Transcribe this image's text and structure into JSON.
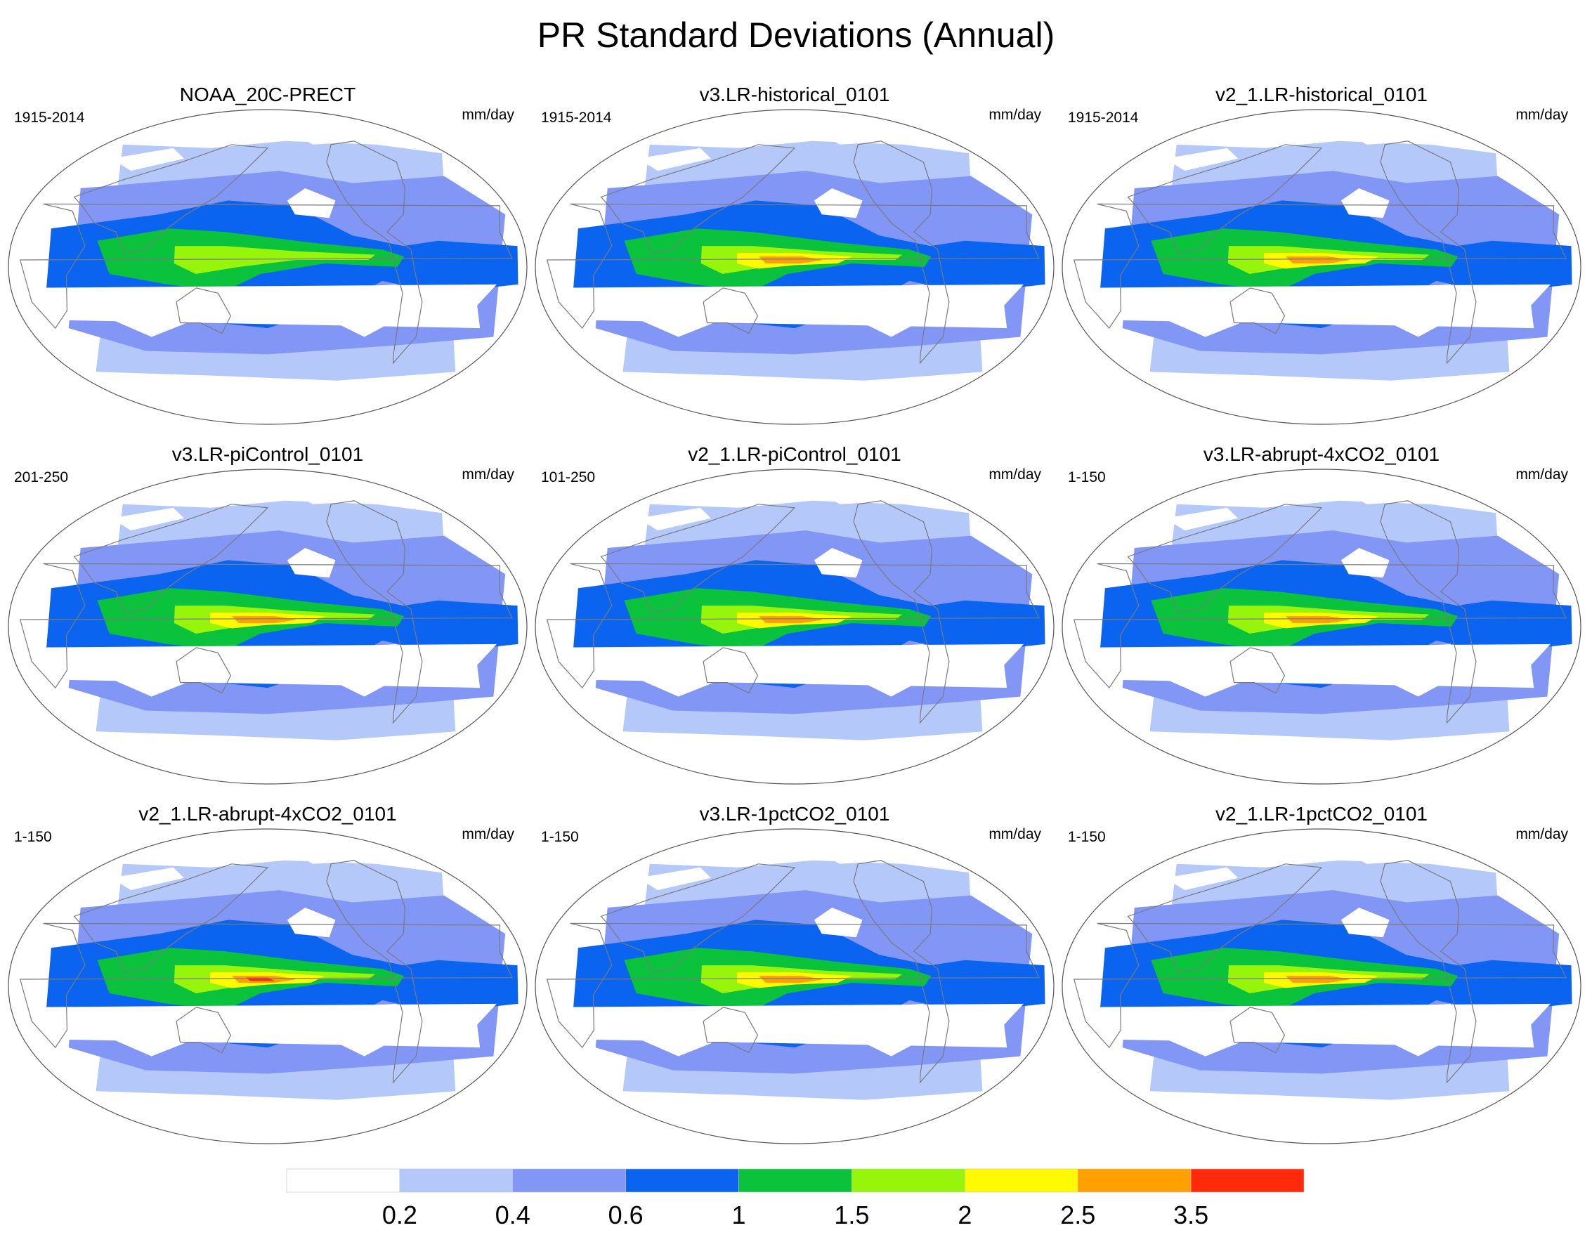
{
  "title": "PR Standard Deviations (Annual)",
  "units": "mm/day",
  "panels": [
    {
      "title": "NOAA_20C-PRECT",
      "years": "1915-2014",
      "units": "mm/day",
      "peak": 1.5
    },
    {
      "title": "v3.LR-historical_0101",
      "years": "1915-2014",
      "units": "mm/day",
      "peak": 2.5
    },
    {
      "title": "v2_1.LR-historical_0101",
      "years": "1915-2014",
      "units": "mm/day",
      "peak": 2.5
    },
    {
      "title": "v3.LR-piControl_0101",
      "years": "201-250",
      "units": "mm/day",
      "peak": 2.5
    },
    {
      "title": "v2_1.LR-piControl_0101",
      "years": "101-250",
      "units": "mm/day",
      "peak": 2.5
    },
    {
      "title": "v3.LR-abrupt-4xCO2_0101",
      "years": "1-150",
      "units": "mm/day",
      "peak": 2.5
    },
    {
      "title": "v2_1.LR-abrupt-4xCO2_0101",
      "years": "1-150",
      "units": "mm/day",
      "peak": 3.5
    },
    {
      "title": "v3.LR-1pctCO2_0101",
      "years": "1-150",
      "units": "mm/day",
      "peak": 2.5
    },
    {
      "title": "v2_1.LR-1pctCO2_0101",
      "years": "1-150",
      "units": "mm/day",
      "peak": 2.5
    }
  ],
  "colorbar": {
    "labels": [
      "0.2",
      "0.4",
      "0.6",
      "1",
      "1.5",
      "2",
      "2.5",
      "3.5"
    ],
    "colors": [
      "#ffffff",
      "#b4c8fa",
      "#8296f5",
      "#0a64f0",
      "#0ac23c",
      "#96f50a",
      "#fffa00",
      "#ffa000",
      "#ff2a0a"
    ]
  },
  "colors": {
    "coast": "#7a7a7a",
    "border": "#555555"
  }
}
